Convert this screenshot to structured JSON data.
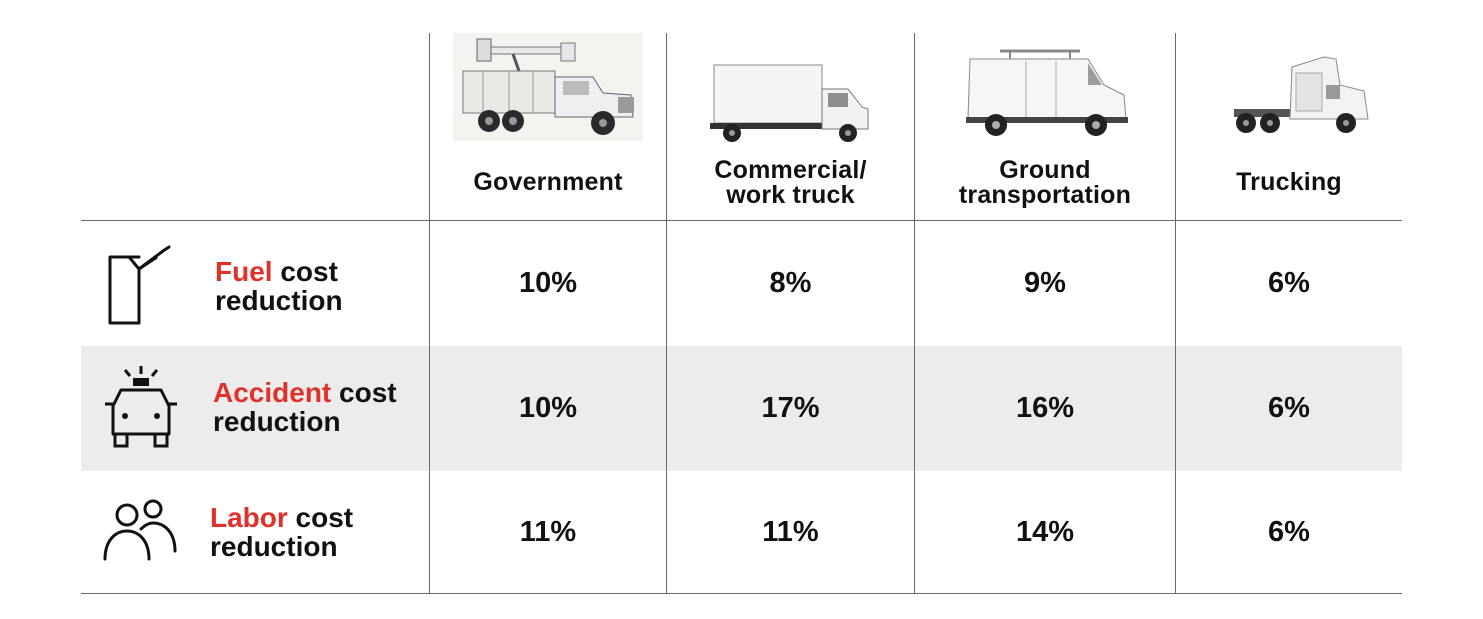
{
  "columns": [
    {
      "label": "Government",
      "vehicle": "bucket-truck"
    },
    {
      "label": "Commercial/\nwork truck",
      "vehicle": "box-truck"
    },
    {
      "label": "Ground\ntransportation",
      "vehicle": "cargo-van"
    },
    {
      "label": "Trucking",
      "vehicle": "semi-tractor"
    }
  ],
  "rows": [
    {
      "highlight": "Fuel",
      "rest_line1": " cost",
      "line2": "reduction",
      "icon": "fuel-can-icon",
      "values": [
        "10%",
        "8%",
        "9%",
        "6%"
      ]
    },
    {
      "highlight": "Accident",
      "rest_line1": " cost",
      "line2": "reduction",
      "icon": "emergency-vehicle-icon",
      "values": [
        "10%",
        "17%",
        "16%",
        "6%"
      ]
    },
    {
      "highlight": "Labor",
      "rest_line1": " cost",
      "line2": "reduction",
      "icon": "people-icon",
      "values": [
        "11%",
        "11%",
        "14%",
        "6%"
      ]
    }
  ],
  "colors": {
    "highlight": "#e0312b",
    "band": "#ececec",
    "rule": "#6b6b6b",
    "text": "#111111"
  }
}
